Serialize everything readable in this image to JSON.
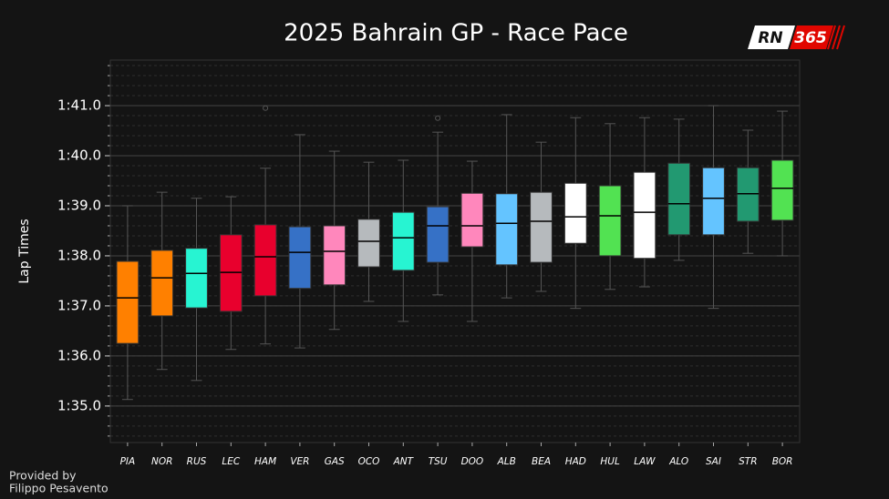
{
  "chart_data": {
    "type": "box",
    "title": "2025 Bahrain GP - Race Pace",
    "y_label": "Lap Times",
    "logo": {
      "left": "RN",
      "right": "365"
    },
    "credit": [
      "Provided by",
      "Filippo Pesavento"
    ],
    "categories": [
      "PIA",
      "NOR",
      "RUS",
      "LEC",
      "HAM",
      "VER",
      "GAS",
      "OCO",
      "ANT",
      "TSU",
      "DOO",
      "ALB",
      "BEA",
      "HAD",
      "HUL",
      "LAW",
      "ALO",
      "SAI",
      "STR",
      "BOR"
    ],
    "colors": [
      "#ff8000",
      "#ff8000",
      "#27f4d2",
      "#e8002d",
      "#e8002d",
      "#3671c6",
      "#ff87bc",
      "#b6babd",
      "#27f4d2",
      "#3671c6",
      "#ff87bc",
      "#64c4ff",
      "#b6babd",
      "#ffffff",
      "#52e252",
      "#ffffff",
      "#229971",
      "#64c4ff",
      "#229971",
      "#52e252"
    ],
    "boxes": [
      {
        "whislo": 95.13,
        "q1": 96.25,
        "med": 97.16,
        "q3": 97.89,
        "whishi": 99.0
      },
      {
        "whislo": 95.73,
        "q1": 96.8,
        "med": 97.56,
        "q3": 98.11,
        "whishi": 99.27
      },
      {
        "whislo": 95.51,
        "q1": 96.96,
        "med": 97.65,
        "q3": 98.15,
        "whishi": 99.15
      },
      {
        "whislo": 96.13,
        "q1": 96.89,
        "med": 97.67,
        "q3": 98.42,
        "whishi": 99.18
      },
      {
        "whislo": 96.24,
        "q1": 97.2,
        "med": 97.98,
        "q3": 98.62,
        "whishi": 99.75,
        "fliers": [
          100.95
        ]
      },
      {
        "whislo": 96.16,
        "q1": 97.35,
        "med": 98.07,
        "q3": 98.58,
        "whishi": 100.42
      },
      {
        "whislo": 96.53,
        "q1": 97.42,
        "med": 98.09,
        "q3": 98.6,
        "whishi": 100.09
      },
      {
        "whislo": 97.09,
        "q1": 97.78,
        "med": 98.29,
        "q3": 98.73,
        "whishi": 99.87
      },
      {
        "whislo": 96.69,
        "q1": 97.71,
        "med": 98.36,
        "q3": 98.87,
        "whishi": 99.91
      },
      {
        "whislo": 97.22,
        "q1": 97.87,
        "med": 98.6,
        "q3": 98.98,
        "whishi": 100.47,
        "fliers": [
          100.75
        ]
      },
      {
        "whislo": 96.69,
        "q1": 98.18,
        "med": 98.6,
        "q3": 99.25,
        "whishi": 99.89
      },
      {
        "whislo": 97.16,
        "q1": 97.82,
        "med": 98.65,
        "q3": 99.24,
        "whishi": 100.82
      },
      {
        "whislo": 97.29,
        "q1": 97.87,
        "med": 98.69,
        "q3": 99.27,
        "whishi": 100.27
      },
      {
        "whislo": 96.95,
        "q1": 98.25,
        "med": 98.78,
        "q3": 99.45,
        "whishi": 100.76
      },
      {
        "whislo": 97.33,
        "q1": 98.0,
        "med": 98.8,
        "q3": 99.4,
        "whishi": 100.64
      },
      {
        "whislo": 97.38,
        "q1": 97.95,
        "med": 98.87,
        "q3": 99.67,
        "whishi": 100.76
      },
      {
        "whislo": 97.91,
        "q1": 98.42,
        "med": 99.04,
        "q3": 99.85,
        "whishi": 100.73
      },
      {
        "whislo": 96.95,
        "q1": 98.42,
        "med": 99.15,
        "q3": 99.76,
        "whishi": 101.0
      },
      {
        "whislo": 98.05,
        "q1": 98.69,
        "med": 99.24,
        "q3": 99.76,
        "whishi": 100.51
      },
      {
        "whislo": 98.0,
        "q1": 98.71,
        "med": 99.35,
        "q3": 99.91,
        "whishi": 100.89
      }
    ],
    "ylim": [
      94.27,
      101.91
    ],
    "yticks": [
      {
        "value": 95,
        "label": "1:35.0"
      },
      {
        "value": 96,
        "label": "1:36.0"
      },
      {
        "value": 97,
        "label": "1:37.0"
      },
      {
        "value": 98,
        "label": "1:38.0"
      },
      {
        "value": 99,
        "label": "1:39.0"
      },
      {
        "value": 100,
        "label": "1:40.0"
      },
      {
        "value": 101,
        "label": "1:41.0"
      }
    ],
    "grid": true,
    "minor_grid": true
  }
}
